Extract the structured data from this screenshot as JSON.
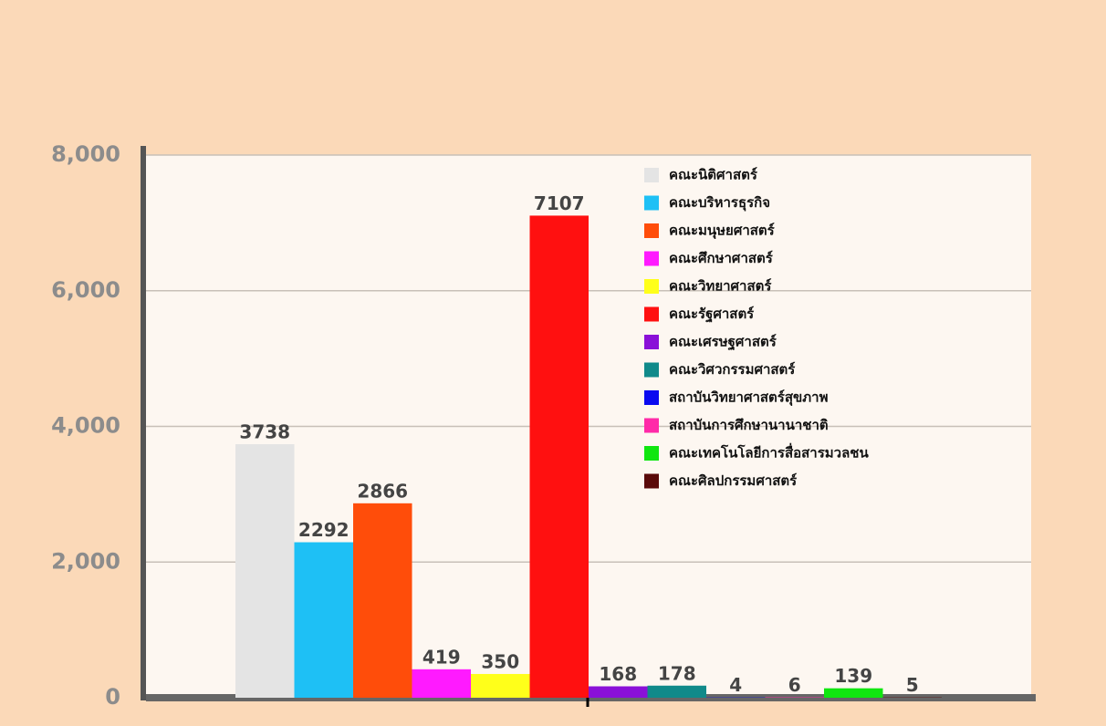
{
  "chart_data": {
    "type": "bar",
    "categories": [
      null
    ],
    "series": [
      {
        "name": "คณะนิติศาสตร์",
        "color": "#e4e4e4",
        "values": [
          3738
        ]
      },
      {
        "name": "คณะบริหารธุรกิจ",
        "color": "#1ec0f5",
        "values": [
          2292
        ]
      },
      {
        "name": "คณะมนุษยศาสตร์",
        "color": "#ff4d0a",
        "values": [
          2866
        ]
      },
      {
        "name": "คณะศึกษาศาสตร์",
        "color": "#ff1aff",
        "values": [
          419
        ]
      },
      {
        "name": "คณะวิทยาศาสตร์",
        "color": "#ffff1a",
        "values": [
          350
        ]
      },
      {
        "name": "คณะรัฐศาสตร์",
        "color": "#ff1010",
        "values": [
          7107
        ]
      },
      {
        "name": "คณะเศรษฐศาสตร์",
        "color": "#8a10d8",
        "values": [
          168
        ]
      },
      {
        "name": "คณะวิศวกรรมศาสตร์",
        "color": "#108a8a",
        "values": [
          178
        ]
      },
      {
        "name": "สถาบันวิทยาศาสตร์สุขภาพ",
        "color": "#0a0af0",
        "values": [
          4
        ]
      },
      {
        "name": "สถาบันการศึกษานานาชาติ",
        "color": "#ff2aa8",
        "values": [
          6
        ]
      },
      {
        "name": "คณะเทคโนโลยีการสื่อสารมวลชน",
        "color": "#10e610",
        "values": [
          139
        ]
      },
      {
        "name": "คณะศิลปกรรมศาสตร์",
        "color": "#5a0a0a",
        "values": [
          5
        ]
      }
    ],
    "ylim": [
      0,
      8000
    ],
    "yticks": [
      0,
      {
        "value": 2000,
        "label": "2,000"
      },
      {
        "value": 4000,
        "label": "4,000"
      },
      {
        "value": 6000,
        "label": "6,000"
      },
      {
        "value": 8000,
        "label": "8,000"
      }
    ],
    "grid": true
  }
}
